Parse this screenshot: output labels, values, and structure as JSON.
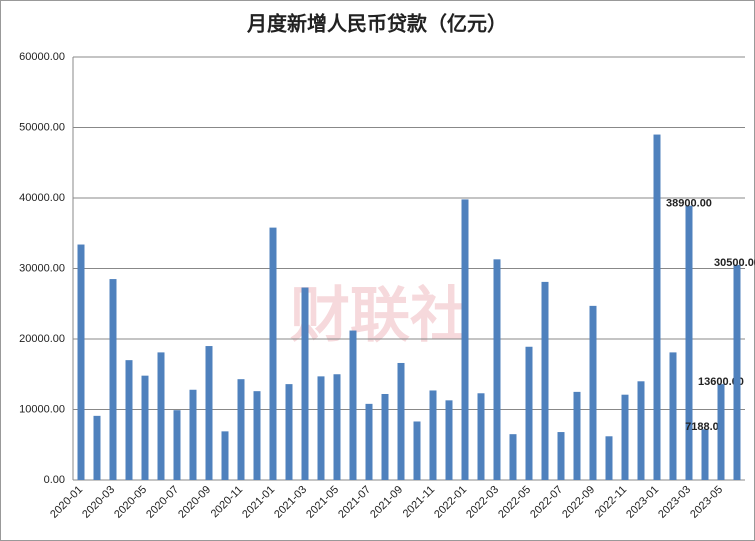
{
  "chart_data": {
    "type": "bar",
    "title": "月度新增人民币贷款（亿元）",
    "watermark": "财联社",
    "categories": [
      "2020-01",
      null,
      "2020-03",
      null,
      "2020-05",
      null,
      "2020-07",
      null,
      "2020-09",
      null,
      "2020-11",
      null,
      "2021-01",
      null,
      "2021-03",
      null,
      "2021-05",
      null,
      "2021-07",
      null,
      "2021-09",
      null,
      "2021-11",
      null,
      "2022-01",
      null,
      "2022-03",
      null,
      "2022-05",
      null,
      "2022-07",
      null,
      "2022-09",
      null,
      "2022-11",
      null,
      "2023-01",
      null,
      "2023-03",
      null,
      "2023-05",
      null
    ],
    "values": [
      33400,
      9100,
      28500,
      17000,
      14800,
      18100,
      9900,
      12800,
      19000,
      6900,
      14300,
      12600,
      35800,
      13600,
      27300,
      14700,
      15000,
      21200,
      10800,
      12200,
      16600,
      8300,
      12700,
      11300,
      39800,
      12300,
      31300,
      6500,
      18900,
      28100,
      6800,
      12500,
      24700,
      6200,
      12100,
      14000,
      49000,
      18100,
      38900,
      7188,
      13600,
      30500
    ],
    "value_labels": [
      null,
      null,
      null,
      null,
      null,
      null,
      null,
      null,
      null,
      null,
      null,
      null,
      null,
      null,
      null,
      null,
      null,
      null,
      null,
      null,
      null,
      null,
      null,
      null,
      null,
      null,
      null,
      null,
      null,
      null,
      null,
      null,
      null,
      null,
      null,
      null,
      null,
      null,
      "38900.00",
      "7188.00",
      "13600.00",
      "30500.00"
    ],
    "color": "#4f81bd",
    "ylim": [
      0,
      60000
    ],
    "yticks": [
      {
        "value": 0,
        "label": "0.00"
      },
      {
        "value": 10000,
        "label": "10000.00"
      },
      {
        "value": 20000,
        "label": "20000.00"
      },
      {
        "value": 30000,
        "label": "30000.00"
      },
      {
        "value": 40000,
        "label": "40000.00"
      },
      {
        "value": 50000,
        "label": "50000.00"
      },
      {
        "value": 60000,
        "label": "60000.00"
      }
    ],
    "grid": true
  }
}
